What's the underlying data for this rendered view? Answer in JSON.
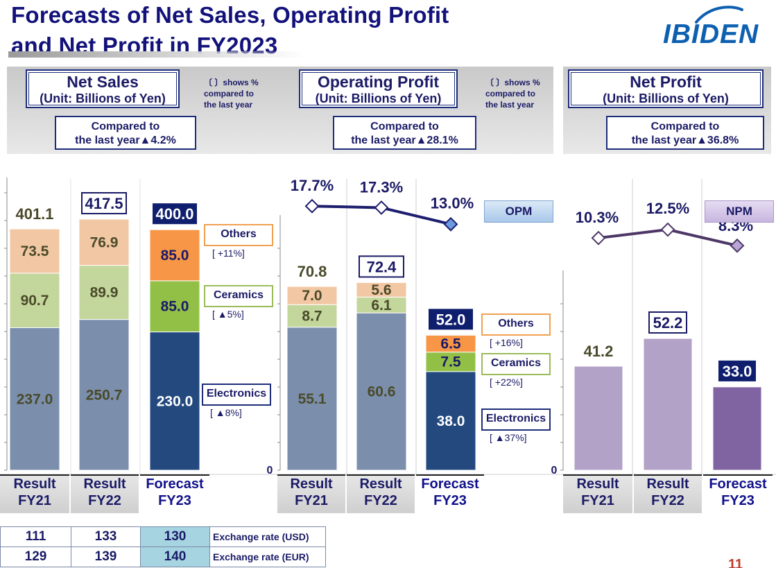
{
  "header": {
    "title_line1": "Forecasts of Net Sales, Operating Profit",
    "title_line2": "and Net Profit in FY2023",
    "logo": "IBIDEN"
  },
  "panels": {
    "net_sales": {
      "title": "Net Sales",
      "unit": "(Unit: Billions of Yen)",
      "note_line1": "〔  〕shows %",
      "note_line2": "compared to",
      "note_line3": "the  last year",
      "compare_line1": "Compared to",
      "compare_line2": "the last year▲4.2%"
    },
    "operating_profit": {
      "title": "Operating  Profit",
      "unit": "(Unit: Billions of Yen)",
      "note_line1": "〔  〕shows %",
      "note_line2": "compared to",
      "note_line3": "the  last year",
      "compare_line1": "Compared to",
      "compare_line2": "the last year▲28.1%",
      "ratio_label": "OPM"
    },
    "net_profit": {
      "title": "Net  Profit",
      "unit": "(Unit: Billions of Yen)",
      "compare_line1": "Compared to",
      "compare_line2": "the last year▲36.8%",
      "ratio_label": "NPM"
    }
  },
  "legends": {
    "net_sales": [
      {
        "name": "Others",
        "note": "[    +11%]",
        "color": "#f0a050"
      },
      {
        "name": "Ceramics",
        "note": "[    ▲5%]",
        "color": "#9bbb59"
      },
      {
        "name": "Electronics",
        "note": "[  ▲8%]",
        "color": "#1d2d7a"
      }
    ],
    "operating_profit": [
      {
        "name": "Others",
        "note": "[    +16%]",
        "color": "#f0a050"
      },
      {
        "name": "Ceramics",
        "note": "[    +22%]",
        "color": "#9bbb59"
      },
      {
        "name": "Electronics",
        "note": "[  ▲37%]",
        "color": "#1d2d7a"
      }
    ]
  },
  "categories": [
    {
      "line1": "Result",
      "line2": "FY21"
    },
    {
      "line1": "Result",
      "line2": "FY22"
    },
    {
      "line1": "Forecast",
      "line2": "FY23"
    }
  ],
  "chart_data": [
    {
      "type": "bar",
      "stacked": true,
      "title": "Net Sales",
      "categories": [
        "Result FY21",
        "Result FY22",
        "Forecast FY23"
      ],
      "series": [
        {
          "name": "Electronics",
          "values": [
            237.0,
            250.7,
            230.0
          ]
        },
        {
          "name": "Ceramics",
          "values": [
            90.7,
            89.9,
            85.0
          ]
        },
        {
          "name": "Others",
          "values": [
            73.5,
            76.9,
            85.0
          ]
        }
      ],
      "totals": [
        401.1,
        417.5,
        400.0
      ],
      "labels": {
        "segments": [
          [
            "237.0",
            "90.7",
            "73.5"
          ],
          [
            "250.7",
            "89.9",
            "76.9"
          ],
          [
            "230.0",
            "85.0",
            "85.0"
          ]
        ],
        "totals": [
          "401.1",
          "417.5",
          "400.0"
        ]
      },
      "ylim": [
        0,
        420
      ],
      "colors": {
        "result": [
          "#7b8fad",
          "#c3d69b",
          "#f2c7a3"
        ],
        "forecast": [
          "#23497e",
          "#92c047",
          "#f79646"
        ]
      }
    },
    {
      "type": "bar",
      "stacked": true,
      "title": "Operating  Profit",
      "categories": [
        "Result FY21",
        "Result FY22",
        "Forecast FY23"
      ],
      "series": [
        {
          "name": "Electronics",
          "values": [
            55.1,
            60.6,
            38.0
          ]
        },
        {
          "name": "Ceramics",
          "values": [
            8.7,
            6.1,
            7.5
          ]
        },
        {
          "name": "Others",
          "values": [
            7.0,
            5.6,
            6.5
          ]
        }
      ],
      "totals": [
        70.8,
        72.4,
        52.0
      ],
      "labels": {
        "segments": [
          [
            "55.1",
            "8.7",
            "7.0"
          ],
          [
            "60.6",
            "6.1",
            "5.6"
          ],
          [
            "38.0",
            "7.5",
            "6.5"
          ]
        ],
        "totals": [
          "70.8",
          "72.4",
          "52.0"
        ]
      },
      "y_zero_label": "0",
      "ylim": [
        0,
        85
      ],
      "ratio_line": {
        "name": "OPM",
        "values": [
          17.7,
          17.3,
          13.0
        ],
        "labels": [
          "17.7%",
          "17.3%",
          "13.0%"
        ],
        "ylim": [
          10,
          19
        ]
      },
      "colors": {
        "result": [
          "#7b8fad",
          "#c3d69b",
          "#f2c7a3"
        ],
        "forecast": [
          "#23497e",
          "#92c047",
          "#f79646"
        ],
        "line": "#1d1d6e"
      }
    },
    {
      "type": "bar",
      "title": "Net  Profit",
      "categories": [
        "Result FY21",
        "Result FY22",
        "Forecast FY23"
      ],
      "values": [
        41.2,
        52.2,
        33.0
      ],
      "labels": [
        "41.2",
        "52.2",
        "33.0"
      ],
      "y_zero_label": "0",
      "ylim": [
        0,
        63
      ],
      "ratio_line": {
        "name": "NPM",
        "values": [
          10.3,
          12.5,
          8.3
        ],
        "labels": [
          "10.3%",
          "12.5%",
          "8.3%"
        ],
        "ylim": [
          0,
          14.5
        ]
      },
      "colors": {
        "result": "#b3a2c7",
        "forecast": "#8064a2",
        "line": "#4d3766"
      }
    }
  ],
  "exchange_rates": [
    {
      "values": [
        "111",
        "133",
        "130"
      ],
      "label": "Exchange rate (USD)"
    },
    {
      "values": [
        "129",
        "139",
        "140"
      ],
      "label": "Exchange rate (EUR)"
    }
  ],
  "page_number": "11"
}
